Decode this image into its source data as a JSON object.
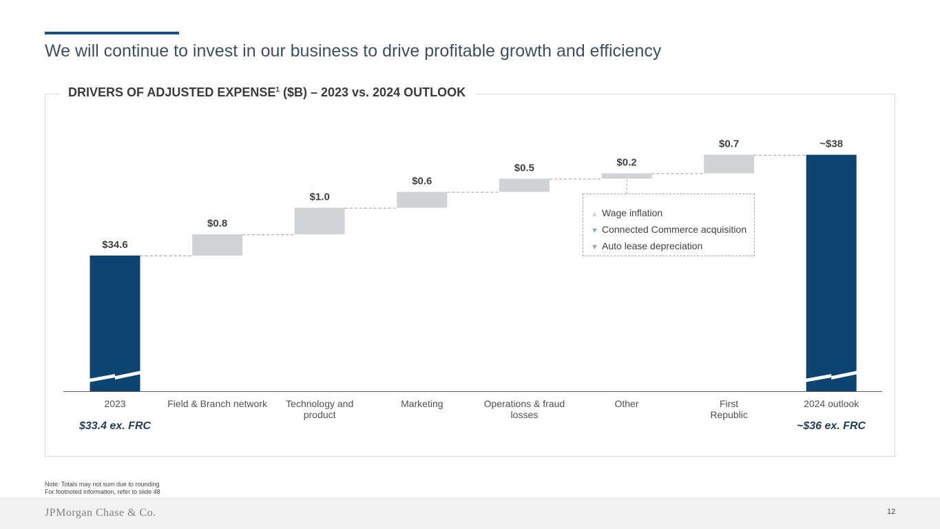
{
  "page": {
    "title": "We will continue to invest in our business to drive profitable growth and efficiency",
    "page_number": "12"
  },
  "chart_data": {
    "type": "waterfall",
    "title": "DRIVERS OF ADJUSTED EXPENSE",
    "title_superscript": "1",
    "title_suffix": " ($B) – 2023 vs. 2024 OUTLOOK",
    "categories": [
      "2023",
      "Field & Branch network",
      "Technology and product",
      "Marketing",
      "Operations & fraud losses",
      "Other",
      "First Republic",
      "2024 outlook"
    ],
    "values": [
      34.6,
      0.8,
      1.0,
      0.6,
      0.5,
      0.2,
      0.7,
      38
    ],
    "value_labels": [
      "$34.6",
      "$0.8",
      "$1.0",
      "$0.6",
      "$0.5",
      "$0.2",
      "$0.7",
      "~$38"
    ],
    "bar_kinds": [
      "total",
      "increment",
      "increment",
      "increment",
      "increment",
      "increment",
      "increment",
      "total"
    ],
    "axis_break": true,
    "ex_frc": {
      "start": "$33.4 ex. FRC",
      "end": "~$36 ex. FRC"
    },
    "colors": {
      "total": "#0d4572",
      "increment": "#d0d3d6",
      "connector": "#9a9a9a"
    }
  },
  "callout": {
    "items": [
      {
        "direction": "up",
        "icon": "triangle-up-icon",
        "label": "Wage inflation"
      },
      {
        "direction": "down",
        "icon": "triangle-down-icon",
        "label": "Connected Commerce acquisition"
      },
      {
        "direction": "down",
        "icon": "triangle-down-icon",
        "label": "Auto lease depreciation"
      }
    ]
  },
  "notes": {
    "line1": "Note: Totals may not sum due to rounding",
    "line2": "For footnoted information, refer to slide 48"
  },
  "footer": {
    "logo_text": "JPMorgan Chase & Co."
  }
}
